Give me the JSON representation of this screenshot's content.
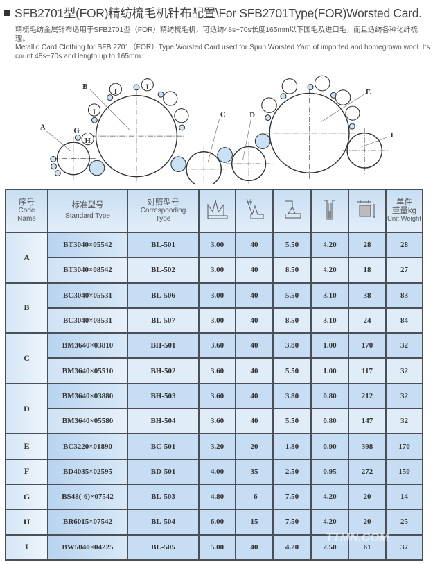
{
  "title": "SFB2701型(FOR)精纺梳毛机针布配置\\For SFB2701Type(FOR)Worsted  Card.",
  "description_cn": "精梳毛纺金属针布适用于SFB2701型（FOR）精纺梳毛机，可适纺48s~70s长度165mm以下国毛及进口毛，而且适纺各种化纤梳理。",
  "description_en": "Metallic Card Clothing for SFB 2701（FOR）Type Worsted Card  used for Spun Worsted Yarn of imported and homegrown wool. Its count 48s~70s and length up to 165mm.",
  "diagram": {
    "labels": [
      "A",
      "B",
      "G",
      "H",
      "I",
      "I",
      "I",
      "C",
      "D",
      "E",
      "I"
    ],
    "fill_color": "#c9e1f5"
  },
  "table": {
    "headers": {
      "code_cn": "序号",
      "code_en1": "Code",
      "code_en2": "Name",
      "std_cn": "标准型号",
      "std_en": "Standard Type",
      "corr_cn": "对照型号",
      "corr_en1": "Corresponding",
      "corr_en2": "Type",
      "weight_cn1": "单件",
      "weight_cn2": "重量kg",
      "weight_en": "Unit Weight",
      "icons": [
        "tooth-height-icon",
        "tooth-angle-icon",
        "tooth-pitch-icon",
        "base-width-icon",
        "tooth-density-icon"
      ]
    },
    "groups": [
      {
        "code": "A",
        "rows": [
          [
            "BT3040×05542",
            "BL-501",
            "3.00",
            "40",
            "5.50",
            "4.20",
            "28",
            "28"
          ],
          [
            "BT3040×08542",
            "BL-502",
            "3.00",
            "40",
            "8.50",
            "4.20",
            "18",
            "27"
          ]
        ]
      },
      {
        "code": "B",
        "rows": [
          [
            "BC3040×05531",
            "BL-506",
            "3.00",
            "40",
            "5.50",
            "3.10",
            "38",
            "83"
          ],
          [
            "BC3040×08531",
            "BL-507",
            "3.00",
            "40",
            "8.50",
            "3.10",
            "24",
            "84"
          ]
        ]
      },
      {
        "code": "C",
        "rows": [
          [
            "BM3640×03810",
            "BH-501",
            "3.60",
            "40",
            "3.80",
            "1.00",
            "170",
            "32"
          ],
          [
            "BM3640×05510",
            "BH-502",
            "3.60",
            "40",
            "5.50",
            "1.00",
            "117",
            "32"
          ]
        ]
      },
      {
        "code": "D",
        "rows": [
          [
            "BM3640×03880",
            "BH-503",
            "3.60",
            "40",
            "3.80",
            "0.80",
            "212",
            "32"
          ],
          [
            "BM3640×05580",
            "BH-504",
            "3.60",
            "40",
            "5.50",
            "0.80",
            "147",
            "32"
          ]
        ]
      },
      {
        "code": "E",
        "rows": [
          [
            "BC3220×01890",
            "BC-501",
            "3.20",
            "20",
            "1.80",
            "0.90",
            "398",
            "170"
          ]
        ]
      },
      {
        "code": "F",
        "rows": [
          [
            "BD4035×02595",
            "BD-501",
            "4.00",
            "35",
            "2.50",
            "0.95",
            "272",
            "150"
          ]
        ]
      },
      {
        "code": "G",
        "rows": [
          [
            "BS48(-6)×07542",
            "BL-503",
            "4.80",
            "-6",
            "7.50",
            "4.20",
            "20",
            "14"
          ]
        ]
      },
      {
        "code": "H",
        "rows": [
          [
            "BR6015×07542",
            "BL-504",
            "6.00",
            "15",
            "7.50",
            "4.20",
            "20",
            "25"
          ]
        ]
      },
      {
        "code": "I",
        "rows": [
          [
            "BW5040×04225",
            "BL-505",
            "5.00",
            "40",
            "4.20",
            "2.50",
            "61",
            "37"
          ]
        ]
      }
    ]
  },
  "watermark": "TTMN.COM"
}
